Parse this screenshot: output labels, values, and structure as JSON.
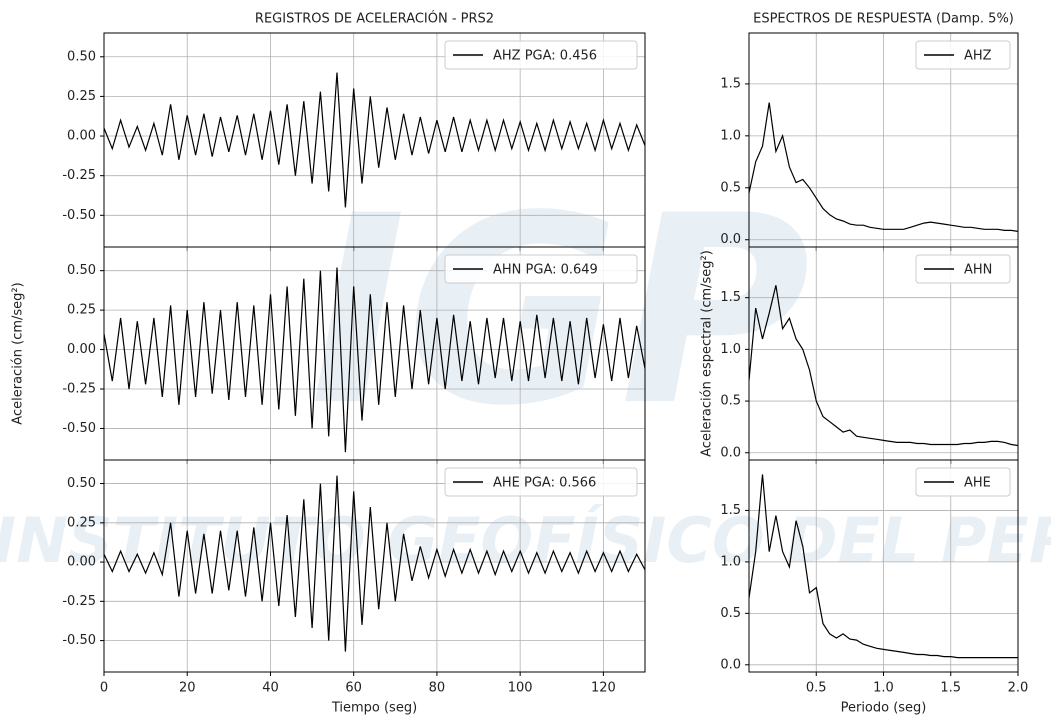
{
  "watermark": {
    "logo": "IGP",
    "text": "INSTITUTO GEOFÍSICO DEL PERÚ"
  },
  "chart_data": [
    {
      "type": "line",
      "title": "REGISTROS DE ACELERACIÓN - PRS2",
      "x": [
        0,
        2,
        4,
        6,
        8,
        10,
        12,
        14,
        16,
        18,
        20,
        22,
        24,
        26,
        28,
        30,
        32,
        34,
        36,
        38,
        40,
        42,
        44,
        46,
        48,
        50,
        52,
        54,
        56,
        58,
        60,
        62,
        64,
        66,
        68,
        70,
        72,
        74,
        76,
        78,
        80,
        82,
        84,
        86,
        88,
        90,
        92,
        94,
        96,
        98,
        100,
        102,
        104,
        106,
        108,
        110,
        112,
        114,
        116,
        118,
        120,
        122,
        124,
        126,
        128,
        130
      ],
      "series": [
        {
          "name": "AHZ PGA: 0.456",
          "color": "#000000",
          "values": [
            0.05,
            -0.08,
            0.1,
            -0.07,
            0.06,
            -0.09,
            0.08,
            -0.12,
            0.2,
            -0.15,
            0.13,
            -0.12,
            0.14,
            -0.13,
            0.12,
            -0.1,
            0.13,
            -0.12,
            0.14,
            -0.15,
            0.16,
            -0.18,
            0.2,
            -0.25,
            0.22,
            -0.3,
            0.28,
            -0.35,
            0.4,
            -0.45,
            0.3,
            -0.3,
            0.25,
            -0.2,
            0.18,
            -0.15,
            0.14,
            -0.12,
            0.12,
            -0.11,
            0.1,
            -0.1,
            0.12,
            -0.1,
            0.1,
            -0.09,
            0.1,
            -0.09,
            0.1,
            -0.08,
            0.09,
            -0.09,
            0.08,
            -0.09,
            0.1,
            -0.08,
            0.09,
            -0.08,
            0.08,
            -0.09,
            0.1,
            -0.08,
            0.08,
            -0.09,
            0.07,
            -0.06
          ]
        }
      ],
      "xlim": [
        0,
        130
      ],
      "xticks": [
        0,
        20,
        40,
        60,
        80,
        100,
        120
      ],
      "xtick_labels": false,
      "ylim": [
        -0.7,
        0.65
      ],
      "yticks": [
        {
          "value": 0.5,
          "label": "0.50"
        },
        0.25,
        {
          "value": 0,
          "label": "0.00"
        },
        -0.25,
        {
          "value": -0.5,
          "label": "-0.50"
        }
      ],
      "grid": true,
      "legend": "upper right"
    },
    {
      "type": "line",
      "ylabel": "Aceleración (cm/seg²)",
      "x": [
        0,
        2,
        4,
        6,
        8,
        10,
        12,
        14,
        16,
        18,
        20,
        22,
        24,
        26,
        28,
        30,
        32,
        34,
        36,
        38,
        40,
        42,
        44,
        46,
        48,
        50,
        52,
        54,
        56,
        58,
        60,
        62,
        64,
        66,
        68,
        70,
        72,
        74,
        76,
        78,
        80,
        82,
        84,
        86,
        88,
        90,
        92,
        94,
        96,
        98,
        100,
        102,
        104,
        106,
        108,
        110,
        112,
        114,
        116,
        118,
        120,
        122,
        124,
        126,
        128,
        130
      ],
      "series": [
        {
          "name": "AHN PGA: 0.649",
          "color": "#000000",
          "values": [
            0.1,
            -0.2,
            0.2,
            -0.25,
            0.18,
            -0.22,
            0.2,
            -0.3,
            0.28,
            -0.35,
            0.25,
            -0.3,
            0.3,
            -0.28,
            0.25,
            -0.32,
            0.3,
            -0.3,
            0.28,
            -0.35,
            0.35,
            -0.38,
            0.4,
            -0.42,
            0.45,
            -0.5,
            0.5,
            -0.55,
            0.52,
            -0.65,
            0.4,
            -0.45,
            0.35,
            -0.35,
            0.3,
            -0.3,
            0.28,
            -0.25,
            0.25,
            -0.22,
            0.2,
            -0.25,
            0.22,
            -0.2,
            0.18,
            -0.22,
            0.2,
            -0.18,
            0.2,
            -0.2,
            0.18,
            -0.2,
            0.22,
            -0.18,
            0.2,
            -0.2,
            0.18,
            -0.22,
            0.2,
            -0.18,
            0.16,
            -0.2,
            0.2,
            -0.18,
            0.15,
            -0.12
          ]
        }
      ],
      "xlim": [
        0,
        130
      ],
      "xticks": [
        0,
        20,
        40,
        60,
        80,
        100,
        120
      ],
      "xtick_labels": false,
      "ylim": [
        -0.7,
        0.65
      ],
      "yticks": [
        {
          "value": 0.5,
          "label": "0.50"
        },
        0.25,
        {
          "value": 0,
          "label": "0.00"
        },
        -0.25,
        {
          "value": -0.5,
          "label": "-0.50"
        }
      ],
      "grid": true,
      "legend": "upper right"
    },
    {
      "type": "line",
      "xlabel": "Tiempo (seg)",
      "x": [
        0,
        2,
        4,
        6,
        8,
        10,
        12,
        14,
        16,
        18,
        20,
        22,
        24,
        26,
        28,
        30,
        32,
        34,
        36,
        38,
        40,
        42,
        44,
        46,
        48,
        50,
        52,
        54,
        56,
        58,
        60,
        62,
        64,
        66,
        68,
        70,
        72,
        74,
        76,
        78,
        80,
        82,
        84,
        86,
        88,
        90,
        92,
        94,
        96,
        98,
        100,
        102,
        104,
        106,
        108,
        110,
        112,
        114,
        116,
        118,
        120,
        122,
        124,
        126,
        128,
        130
      ],
      "series": [
        {
          "name": "AHE PGA: 0.566",
          "color": "#000000",
          "values": [
            0.05,
            -0.06,
            0.07,
            -0.06,
            0.05,
            -0.07,
            0.06,
            -0.08,
            0.25,
            -0.22,
            0.2,
            -0.2,
            0.18,
            -0.2,
            0.2,
            -0.18,
            0.2,
            -0.22,
            0.22,
            -0.25,
            0.25,
            -0.28,
            0.3,
            -0.35,
            0.4,
            -0.42,
            0.5,
            -0.5,
            0.55,
            -0.57,
            0.45,
            -0.4,
            0.35,
            -0.3,
            0.25,
            -0.25,
            0.18,
            -0.12,
            0.1,
            -0.1,
            0.08,
            -0.09,
            0.08,
            -0.07,
            0.08,
            -0.07,
            0.07,
            -0.08,
            0.07,
            -0.06,
            0.07,
            -0.07,
            0.06,
            -0.07,
            0.07,
            -0.06,
            0.06,
            -0.07,
            0.07,
            -0.06,
            0.06,
            -0.06,
            0.07,
            -0.06,
            0.05,
            -0.05
          ]
        }
      ],
      "xlim": [
        0,
        130
      ],
      "xticks": [
        0,
        20,
        40,
        60,
        80,
        100,
        120
      ],
      "xtick_labels": true,
      "ylim": [
        -0.7,
        0.65
      ],
      "yticks": [
        {
          "value": 0.5,
          "label": "0.50"
        },
        0.25,
        {
          "value": 0,
          "label": "0.00"
        },
        -0.25,
        {
          "value": -0.5,
          "label": "-0.50"
        }
      ],
      "grid": true,
      "legend": "upper right"
    },
    {
      "type": "line",
      "title": "ESPECTROS DE RESPUESTA (Damp. 5%)",
      "x": [
        0,
        0.05,
        0.1,
        0.15,
        0.2,
        0.25,
        0.3,
        0.35,
        0.4,
        0.45,
        0.5,
        0.55,
        0.6,
        0.65,
        0.7,
        0.75,
        0.8,
        0.85,
        0.9,
        0.95,
        1.0,
        1.05,
        1.1,
        1.15,
        1.2,
        1.25,
        1.3,
        1.35,
        1.4,
        1.45,
        1.5,
        1.55,
        1.6,
        1.65,
        1.7,
        1.75,
        1.8,
        1.85,
        1.9,
        1.95,
        2.0
      ],
      "series": [
        {
          "name": "AHZ",
          "color": "#000000",
          "values": [
            0.45,
            0.75,
            0.9,
            1.32,
            0.85,
            1.0,
            0.7,
            0.55,
            0.58,
            0.5,
            0.4,
            0.3,
            0.24,
            0.2,
            0.18,
            0.15,
            0.14,
            0.14,
            0.12,
            0.11,
            0.1,
            0.1,
            0.1,
            0.1,
            0.12,
            0.14,
            0.16,
            0.17,
            0.16,
            0.15,
            0.14,
            0.13,
            0.12,
            0.12,
            0.11,
            0.1,
            0.1,
            0.1,
            0.09,
            0.09,
            0.08
          ]
        }
      ],
      "xlim": [
        0,
        2
      ],
      "xticks": [
        0.5,
        {
          "value": 1,
          "label": "1.0"
        },
        {
          "value": 1.5,
          "label": "1.5"
        },
        {
          "value": 2,
          "label": "2.0"
        }
      ],
      "xtick_labels": false,
      "ylim": [
        -0.07,
        1.99
      ],
      "yticks": [
        {
          "value": 0,
          "label": "0.0"
        },
        0.5,
        {
          "value": 1,
          "label": "1.0"
        },
        1.5
      ],
      "grid": true,
      "legend": "upper right"
    },
    {
      "type": "line",
      "ylabel": "Aceleración espectral (cm/seg²)",
      "x": [
        0,
        0.05,
        0.1,
        0.15,
        0.2,
        0.25,
        0.3,
        0.35,
        0.4,
        0.45,
        0.5,
        0.55,
        0.6,
        0.65,
        0.7,
        0.75,
        0.8,
        0.85,
        0.9,
        0.95,
        1.0,
        1.05,
        1.1,
        1.15,
        1.2,
        1.25,
        1.3,
        1.35,
        1.4,
        1.45,
        1.5,
        1.55,
        1.6,
        1.65,
        1.7,
        1.75,
        1.8,
        1.85,
        1.9,
        1.95,
        2.0
      ],
      "series": [
        {
          "name": "AHN",
          "color": "#000000",
          "values": [
            0.7,
            1.4,
            1.1,
            1.35,
            1.62,
            1.2,
            1.3,
            1.1,
            1.0,
            0.8,
            0.5,
            0.35,
            0.3,
            0.25,
            0.2,
            0.22,
            0.16,
            0.15,
            0.14,
            0.13,
            0.12,
            0.11,
            0.1,
            0.1,
            0.1,
            0.09,
            0.09,
            0.08,
            0.08,
            0.08,
            0.08,
            0.08,
            0.09,
            0.09,
            0.1,
            0.1,
            0.11,
            0.11,
            0.1,
            0.08,
            0.07
          ]
        }
      ],
      "xlim": [
        0,
        2
      ],
      "xticks": [
        0.5,
        {
          "value": 1,
          "label": "1.0"
        },
        {
          "value": 1.5,
          "label": "1.5"
        },
        {
          "value": 2,
          "label": "2.0"
        }
      ],
      "xtick_labels": false,
      "ylim": [
        -0.07,
        1.99
      ],
      "yticks": [
        {
          "value": 0,
          "label": "0.0"
        },
        0.5,
        {
          "value": 1,
          "label": "1.0"
        },
        1.5
      ],
      "grid": true,
      "legend": "upper right"
    },
    {
      "type": "line",
      "xlabel": "Periodo (seg)",
      "x": [
        0,
        0.05,
        0.1,
        0.15,
        0.2,
        0.25,
        0.3,
        0.35,
        0.4,
        0.45,
        0.5,
        0.55,
        0.6,
        0.65,
        0.7,
        0.75,
        0.8,
        0.85,
        0.9,
        0.95,
        1.0,
        1.05,
        1.1,
        1.15,
        1.2,
        1.25,
        1.3,
        1.35,
        1.4,
        1.45,
        1.5,
        1.55,
        1.6,
        1.65,
        1.7,
        1.75,
        1.8,
        1.85,
        1.9,
        1.95,
        2.0
      ],
      "series": [
        {
          "name": "AHE",
          "color": "#000000",
          "values": [
            0.65,
            1.1,
            1.85,
            1.1,
            1.45,
            1.1,
            0.95,
            1.4,
            1.15,
            0.7,
            0.75,
            0.4,
            0.3,
            0.26,
            0.3,
            0.25,
            0.24,
            0.2,
            0.18,
            0.16,
            0.15,
            0.14,
            0.13,
            0.12,
            0.11,
            0.1,
            0.1,
            0.09,
            0.09,
            0.08,
            0.08,
            0.07,
            0.07,
            0.07,
            0.07,
            0.07,
            0.07,
            0.07,
            0.07,
            0.07,
            0.07
          ]
        }
      ],
      "xlim": [
        0,
        2
      ],
      "xticks": [
        0.5,
        {
          "value": 1,
          "label": "1.0"
        },
        {
          "value": 1.5,
          "label": "1.5"
        },
        {
          "value": 2,
          "label": "2.0"
        }
      ],
      "xtick_labels": true,
      "ylim": [
        -0.07,
        1.99
      ],
      "yticks": [
        {
          "value": 0,
          "label": "0.0"
        },
        0.5,
        {
          "value": 1,
          "label": "1.0"
        },
        1.5
      ],
      "grid": true,
      "legend": "upper right"
    }
  ]
}
